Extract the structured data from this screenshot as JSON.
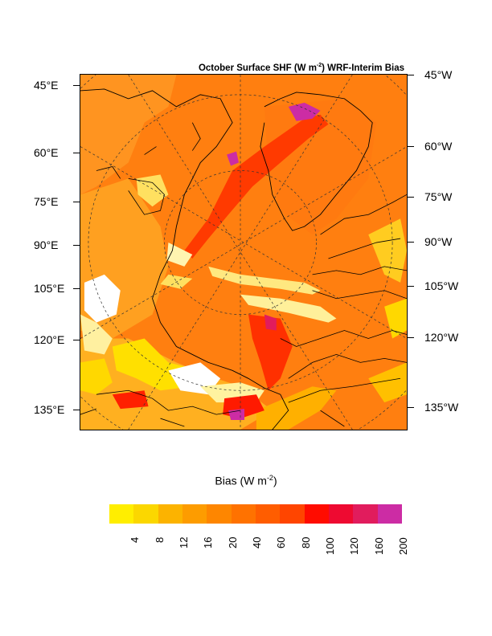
{
  "title": {
    "prefix": "October Surface SHF (W m",
    "exponent": "-2",
    "suffix": ") WRF-Interim Bias"
  },
  "map": {
    "left_labels": [
      "45°E",
      "60°E",
      "75°E",
      "90°E",
      "105°E",
      "120°E",
      "135°E"
    ],
    "right_labels": [
      "45°W",
      "60°W",
      "75°W",
      "90°W",
      "105°W",
      "120°W",
      "135°W"
    ],
    "background_color": "#ff7f10"
  },
  "colorbar": {
    "title_prefix": "Bias (W m",
    "title_exponent": "-2",
    "title_suffix": ")",
    "colors": [
      "#ffee00",
      "#fbd700",
      "#fcb300",
      "#fd9c00",
      "#fe8600",
      "#ff7200",
      "#ff5d00",
      "#ff4500",
      "#ff0c00",
      "#ee0a31",
      "#e11c5d",
      "#cc2ca4"
    ],
    "labels": [
      "4",
      "8",
      "12",
      "16",
      "20",
      "40",
      "60",
      "80",
      "100",
      "120",
      "160",
      "200"
    ]
  }
}
